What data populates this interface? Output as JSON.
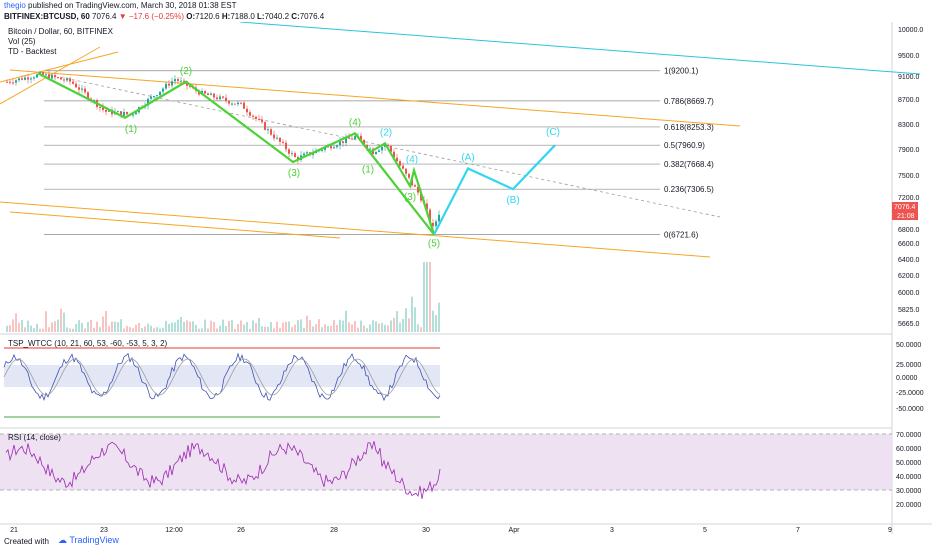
{
  "header": {
    "user": "thegio",
    "published_text": "published on TradingView.com, March 30, 2018 01:38 EST",
    "symbol": "BITFINEX:BTCUSD, 60",
    "last_price": "7076.4",
    "change": "▼ −17.6 (−0.25%)",
    "o_label": "O:",
    "o_value": "7120.6",
    "h_label": "H:",
    "h_value": "7188.0",
    "l_label": "L:",
    "l_value": "7040.2",
    "c_label": "C:",
    "c_value": "7076.4"
  },
  "legend": {
    "title": "Bitcoin / Dollar, 60, BITFINEX",
    "vol": "Vol (25)",
    "indicator": "TD - Backtest",
    "oscillator": "TSP_WTCC (10, 21, 60, 53, -60, -53, 5, 3, 2)",
    "rsi": "RSI (14, close)"
  },
  "price_badge": {
    "price": "7076.4",
    "timer": "21:08"
  },
  "footer": {
    "created": "Created with",
    "brand": "TradingView"
  },
  "colors": {
    "up": "#26a69a",
    "down": "#ef5350",
    "impulse": "#4cd137",
    "corrective": "#33d6f0",
    "channel": "#f6a623",
    "rsi": "#9c27b0",
    "rsi_fill": "#ede1f2"
  },
  "chart_data": {
    "type": "line",
    "price_axis": {
      "min": 5665,
      "max": 10000,
      "ticks": [
        "10000.0",
        "9500.0",
        "9100.0",
        "8700.0",
        "8300.0",
        "7900.0",
        "7500.0",
        "7200.0",
        "6800.0",
        "6600.0",
        "6400.0",
        "6200.0",
        "6000.0",
        "5825.0",
        "5665.0"
      ]
    },
    "time_axis": [
      "21",
      "23",
      "12:00",
      "26",
      "28",
      "30",
      "Apr",
      "3",
      "5",
      "7",
      "9"
    ],
    "fib_levels": [
      {
        "label": "1(9200.1)",
        "value": 9200.1
      },
      {
        "label": "0.786(8669.7)",
        "value": 8669.7
      },
      {
        "label": "0.618(8253.3)",
        "value": 8253.3
      },
      {
        "label": "0.5(7960.9)",
        "value": 7960.9
      },
      {
        "label": "0.382(7668.4)",
        "value": 7668.4
      },
      {
        "label": "0.236(7306.5)",
        "value": 7306.5
      },
      {
        "label": "0(6721.6)",
        "value": 6721.6
      }
    ],
    "wave_impulse": [
      {
        "label": "",
        "x": "21",
        "y": 9150
      },
      {
        "label": "(1)",
        "x": "23",
        "y": 8400
      },
      {
        "label": "(2)",
        "x": "12:00",
        "y": 9000
      },
      {
        "label": "(3)",
        "x": "26-27",
        "y": 7700
      },
      {
        "label": "(4)",
        "x": "28",
        "y": 8150
      },
      {
        "label": "(5)",
        "x": "30",
        "y": 6721.6
      }
    ],
    "wave_sub": [
      {
        "label": "(1)",
        "x": "28-29",
        "y": 7850
      },
      {
        "label": "(2)",
        "x": "29",
        "y": 7990
      },
      {
        "label": "(3)",
        "x": "29-30",
        "y": 7350
      },
      {
        "label": "(4)",
        "x": "29-30",
        "y": 7570
      },
      {
        "label": "(5)",
        "x": "30",
        "y": 6721.6
      }
    ],
    "wave_corrective": [
      {
        "label": "(A)",
        "x": "30-Apr",
        "y": 7600
      },
      {
        "label": "(B)",
        "x": "Apr",
        "y": 7306.5
      },
      {
        "label": "(C)",
        "x": "Apr-3",
        "y": 7960.9
      }
    ],
    "oscillator_axis": [
      "50.0000",
      "25.0000",
      "0.0000",
      "-25.0000",
      "-50.0000"
    ],
    "rsi_axis": [
      "70.0000",
      "60.0000",
      "50.0000",
      "40.0000",
      "30.0000",
      "20.0000"
    ],
    "rsi_last": 45
  }
}
